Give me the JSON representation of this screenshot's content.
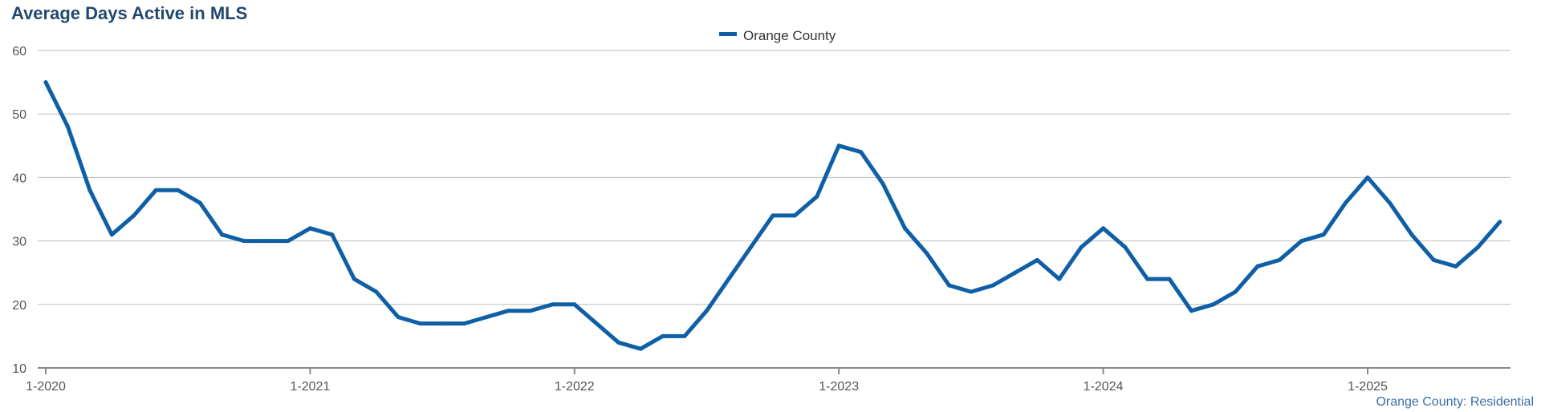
{
  "title": "Average Days Active in MLS",
  "source_label": "Orange County: Residential",
  "colors": {
    "series": "#0e5fa6",
    "title": "#22486e",
    "grid": "#bdbdbd"
  },
  "chart_data": {
    "type": "line",
    "title": "Average Days Active in MLS",
    "xlabel": "",
    "ylabel": "",
    "ylim": [
      10,
      60
    ],
    "yticks": [
      "10",
      "20",
      "30",
      "40",
      "50",
      "60"
    ],
    "xticks": [
      "1-2020",
      "1-2021",
      "1-2022",
      "1-2023",
      "1-2024",
      "1-2025"
    ],
    "grid": true,
    "legend_position": "top-center",
    "x": [
      "1-2020",
      "2-2020",
      "3-2020",
      "4-2020",
      "5-2020",
      "6-2020",
      "7-2020",
      "8-2020",
      "9-2020",
      "10-2020",
      "11-2020",
      "12-2020",
      "1-2021",
      "2-2021",
      "3-2021",
      "4-2021",
      "5-2021",
      "6-2021",
      "7-2021",
      "8-2021",
      "9-2021",
      "10-2021",
      "11-2021",
      "12-2021",
      "1-2022",
      "2-2022",
      "3-2022",
      "4-2022",
      "5-2022",
      "6-2022",
      "7-2022",
      "8-2022",
      "9-2022",
      "10-2022",
      "11-2022",
      "12-2022",
      "1-2023",
      "2-2023",
      "3-2023",
      "4-2023",
      "5-2023",
      "6-2023",
      "7-2023",
      "8-2023",
      "9-2023",
      "10-2023",
      "11-2023",
      "12-2023",
      "1-2024",
      "2-2024",
      "3-2024",
      "4-2024",
      "5-2024",
      "6-2024",
      "7-2024",
      "8-2024",
      "9-2024",
      "10-2024",
      "11-2024",
      "12-2024",
      "1-2025",
      "2-2025",
      "3-2025",
      "4-2025",
      "5-2025",
      "6-2025",
      "7-2025"
    ],
    "series": [
      {
        "name": "Orange County",
        "color": "#0e5fa6",
        "values": [
          55,
          48,
          38,
          31,
          34,
          38,
          38,
          36,
          31,
          30,
          30,
          30,
          32,
          31,
          24,
          22,
          18,
          17,
          17,
          17,
          18,
          19,
          19,
          20,
          20,
          17,
          14,
          13,
          15,
          15,
          19,
          24,
          29,
          34,
          34,
          37,
          45,
          44,
          39,
          32,
          28,
          23,
          22,
          23,
          25,
          27,
          24,
          29,
          32,
          29,
          24,
          24,
          19,
          20,
          22,
          26,
          27,
          30,
          31,
          36,
          40,
          36,
          31,
          27,
          26,
          29,
          33
        ]
      }
    ]
  }
}
